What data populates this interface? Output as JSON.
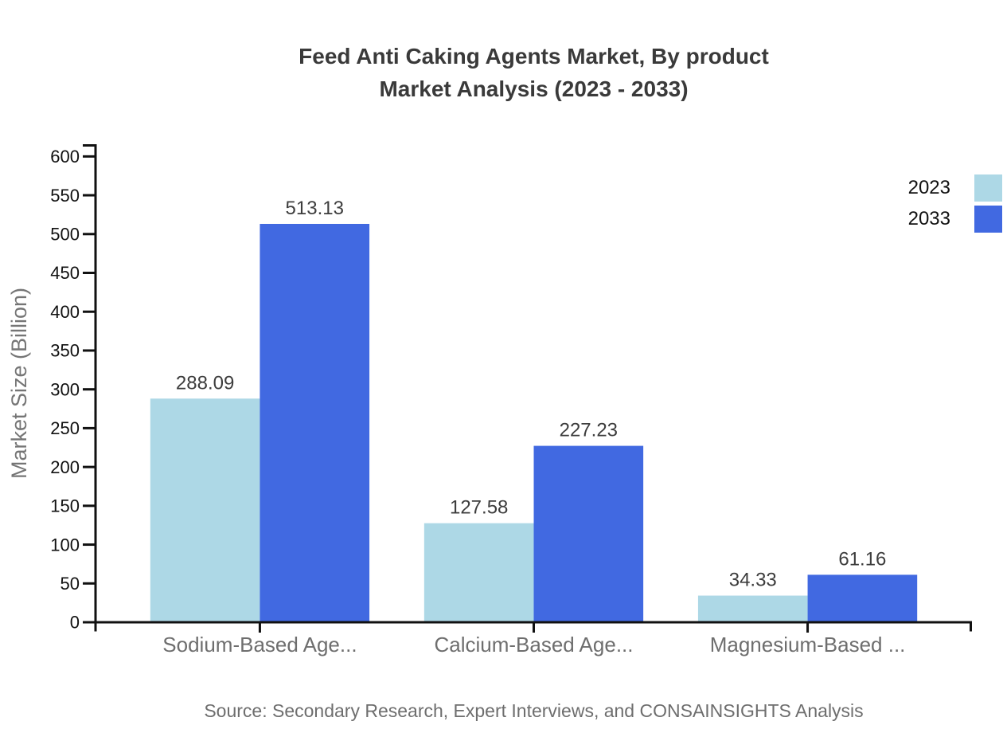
{
  "chart_data": {
    "type": "bar",
    "title": "Feed Anti Caking Agents Market, By product Market Analysis (2023 - 2033)",
    "title_lines": [
      "Feed Anti Caking Agents Market, By product",
      "Market Analysis (2023 - 2033)"
    ],
    "categories": [
      "Sodium-Based Age...",
      "Calcium-Based Age...",
      "Magnesium-Based ..."
    ],
    "series": [
      {
        "name": "2023",
        "color": "#ADD8E6",
        "values": [
          288.09,
          127.58,
          34.33
        ]
      },
      {
        "name": "2033",
        "color": "#4169E1",
        "values": [
          513.13,
          227.23,
          61.16
        ]
      }
    ],
    "xlabel": "",
    "ylabel": "Market Size (Billion)",
    "ylim": [
      0,
      600
    ],
    "ytick_step": 50,
    "grid": false,
    "legend_position": "top-right",
    "value_labels": true,
    "value_label_format": "0.00"
  },
  "source_note": "Source: Secondary Research, Expert Interviews, and CONSAINSIGHTS Analysis",
  "colors": {
    "background": "#ffffff",
    "axis": "#111111",
    "title_text": "#3a3a3a",
    "tick_text": "#111111",
    "value_text": "#3d3d3d",
    "category_text": "#6e6e6e",
    "axis_title_text": "#757575",
    "source_text": "#6e6e6e"
  }
}
